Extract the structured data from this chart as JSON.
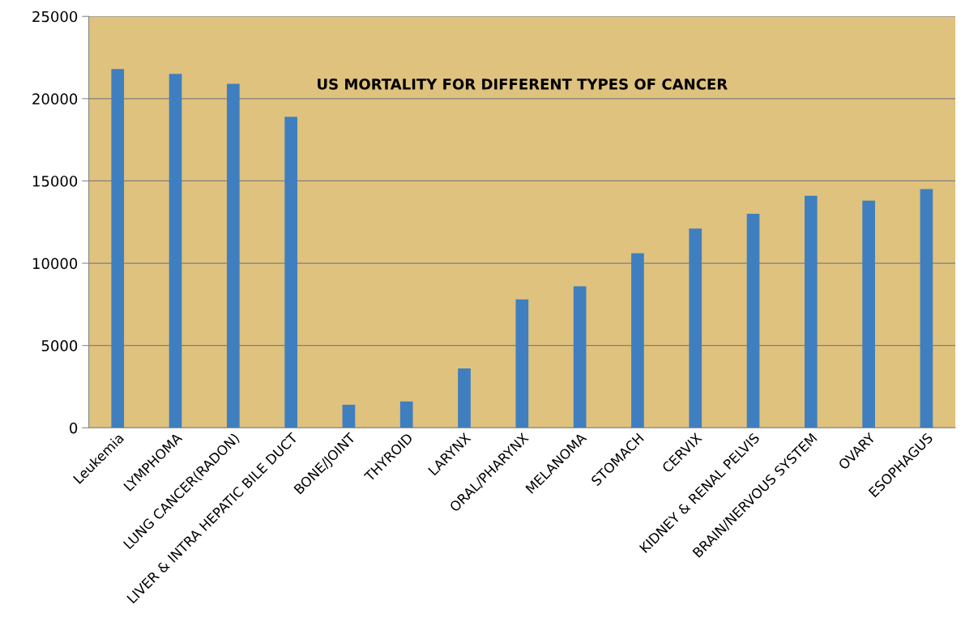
{
  "chart_data": {
    "type": "bar",
    "title": "US MORTALITY FOR DIFFERENT TYPES OF CANCER",
    "categories": [
      "Leukemia",
      "LYMPHOMA",
      "LUNG CANCER(RADON)",
      "LIVER & INTRA HEPATIC BILE DUCT",
      "BONE/JOINT",
      "THYROID",
      "LARYNX",
      "ORAL/PHARYNX",
      "MELANOMA",
      "STOMACH",
      "CERVIX",
      "KIDNEY & RENAL PELVIS",
      "BRAIN/NERVOUS SYSTEM",
      "OVARY",
      "ESOPHAGUS"
    ],
    "values": [
      21800,
      21500,
      20900,
      18900,
      1400,
      1600,
      3600,
      7800,
      8600,
      10600,
      12100,
      13000,
      14100,
      13800,
      14500
    ],
    "color": "#3f7fc0",
    "ylim": [
      0,
      25000
    ],
    "yticks": [
      0,
      5000,
      10000,
      15000,
      20000,
      25000
    ],
    "grid": "y"
  }
}
